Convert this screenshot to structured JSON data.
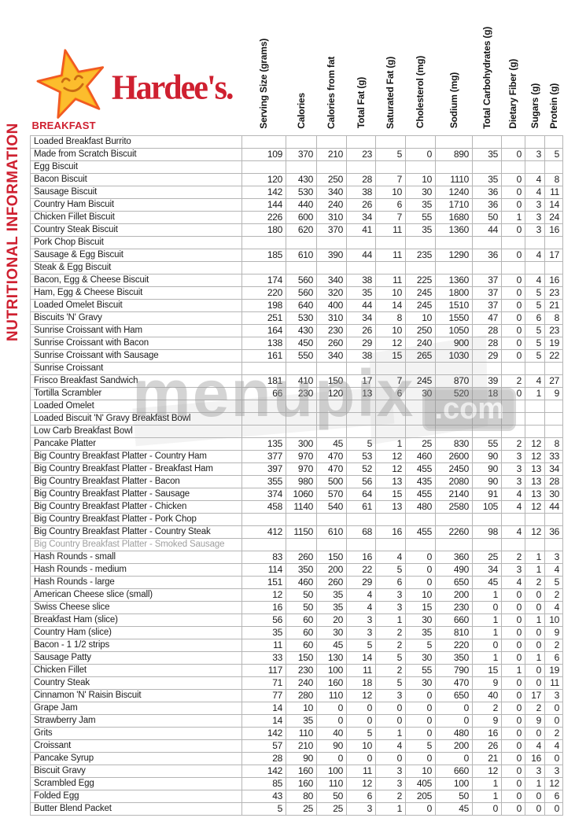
{
  "brand": {
    "name": "Hardee's.",
    "logo_icon": "hardees-smiling-star"
  },
  "sidebar_label": "NUTRITIONAL INFORMATION",
  "section_title": "BREAKFAST",
  "watermark": {
    "text": "menupix",
    "suffix": ".com"
  },
  "colors": {
    "brand_red": "#cf2030",
    "star_gold": "#fbb117",
    "star_outline": "#f15a22",
    "muted_row": "#9f9f9f"
  },
  "table": {
    "columns": [
      "Serving Size (grams)",
      "Calories",
      "Calories from fat",
      "Total Fat (g)",
      "Saturated Fat (g)",
      "Cholesterol (mg)",
      "Sodium (mg)",
      "Total Carbohydrates (g)",
      "Dietary Fiber (g)",
      "Sugars (g)",
      "Protein (g)"
    ],
    "rows": [
      {
        "name": "Loaded Breakfast Burrito",
        "values": [
          "",
          "",
          "",
          "",
          "",
          "",
          "",
          "",
          "",
          "",
          ""
        ]
      },
      {
        "name": "Made from Scratch Biscuit",
        "values": [
          109,
          370,
          210,
          23,
          5,
          0,
          890,
          35,
          0,
          3,
          5
        ]
      },
      {
        "name": "Egg Biscuit",
        "values": [
          "",
          "",
          "",
          "",
          "",
          "",
          "",
          "",
          "",
          "",
          ""
        ]
      },
      {
        "name": "Bacon Biscuit",
        "values": [
          120,
          430,
          250,
          28,
          7,
          10,
          1110,
          35,
          0,
          4,
          8
        ]
      },
      {
        "name": "Sausage Biscuit",
        "values": [
          142,
          530,
          340,
          38,
          10,
          30,
          1240,
          36,
          0,
          4,
          11
        ]
      },
      {
        "name": "Country Ham Biscuit",
        "values": [
          144,
          440,
          240,
          26,
          6,
          35,
          1710,
          36,
          0,
          3,
          14
        ]
      },
      {
        "name": "Chicken Fillet Biscuit",
        "values": [
          226,
          600,
          310,
          34,
          7,
          55,
          1680,
          50,
          1,
          3,
          24
        ]
      },
      {
        "name": "Country Steak Biscuit",
        "values": [
          180,
          620,
          370,
          41,
          11,
          35,
          1360,
          44,
          0,
          3,
          16
        ]
      },
      {
        "name": "Pork Chop Biscuit",
        "values": [
          "",
          "",
          "",
          "",
          "",
          "",
          "",
          "",
          "",
          "",
          ""
        ]
      },
      {
        "name": "Sausage & Egg Biscuit",
        "values": [
          185,
          610,
          390,
          44,
          11,
          235,
          1290,
          36,
          0,
          4,
          17
        ]
      },
      {
        "name": "Steak & Egg Biscuit",
        "values": [
          "",
          "",
          "",
          "",
          "",
          "",
          "",
          "",
          "",
          "",
          ""
        ]
      },
      {
        "name": "Bacon, Egg & Cheese Biscuit",
        "values": [
          174,
          560,
          340,
          38,
          11,
          225,
          1360,
          37,
          0,
          4,
          16
        ]
      },
      {
        "name": "Ham, Egg & Cheese Biscuit",
        "values": [
          220,
          560,
          320,
          35,
          10,
          245,
          1800,
          37,
          0,
          5,
          23
        ]
      },
      {
        "name": "Loaded Omelet Biscuit",
        "values": [
          198,
          640,
          400,
          44,
          14,
          245,
          1510,
          37,
          0,
          5,
          21
        ]
      },
      {
        "name": "Biscuits 'N' Gravy",
        "values": [
          251,
          530,
          310,
          34,
          8,
          10,
          1550,
          47,
          0,
          6,
          8
        ]
      },
      {
        "name": "Sunrise Croissant with Ham",
        "values": [
          164,
          430,
          230,
          26,
          10,
          250,
          1050,
          28,
          0,
          5,
          23
        ]
      },
      {
        "name": "Sunrise Croissant with Bacon",
        "values": [
          138,
          450,
          260,
          29,
          12,
          240,
          900,
          28,
          0,
          5,
          19
        ]
      },
      {
        "name": "Sunrise Croissant with Sausage",
        "values": [
          161,
          550,
          340,
          38,
          15,
          265,
          1030,
          29,
          0,
          5,
          22
        ]
      },
      {
        "name": "Sunrise Croissant",
        "values": [
          "",
          "",
          "",
          "",
          "",
          "",
          "",
          "",
          "",
          "",
          ""
        ]
      },
      {
        "name": "Frisco Breakfast Sandwich",
        "values": [
          181,
          410,
          150,
          17,
          7,
          245,
          870,
          39,
          2,
          4,
          27
        ]
      },
      {
        "name": "Tortilla Scrambler",
        "values": [
          66,
          230,
          120,
          13,
          6,
          30,
          520,
          18,
          0,
          1,
          9
        ]
      },
      {
        "name": "Loaded Omelet",
        "values": [
          "",
          "",
          "",
          "",
          "",
          "",
          "",
          "",
          "",
          "",
          ""
        ]
      },
      {
        "name": "Loaded Biscuit 'N' Gravy Breakfast Bowl",
        "values": [
          "",
          "",
          "",
          "",
          "",
          "",
          "",
          "",
          "",
          "",
          ""
        ]
      },
      {
        "name": "Low Carb Breakfast Bowl",
        "values": [
          "",
          "",
          "",
          "",
          "",
          "",
          "",
          "",
          "",
          "",
          ""
        ]
      },
      {
        "name": "Pancake Platter",
        "values": [
          135,
          300,
          45,
          5,
          1,
          25,
          830,
          55,
          2,
          12,
          8
        ]
      },
      {
        "name": "Big Country Breakfast Platter - Country Ham",
        "values": [
          377,
          970,
          470,
          53,
          12,
          460,
          2600,
          90,
          3,
          12,
          33
        ]
      },
      {
        "name": "Big Country Breakfast Platter - Breakfast Ham",
        "values": [
          397,
          970,
          470,
          52,
          12,
          455,
          2450,
          90,
          3,
          13,
          34
        ]
      },
      {
        "name": "Big Country Breakfast Platter - Bacon",
        "values": [
          355,
          980,
          500,
          56,
          13,
          435,
          2080,
          90,
          3,
          13,
          28
        ]
      },
      {
        "name": "Big Country Breakfast Platter - Sausage",
        "values": [
          374,
          1060,
          570,
          64,
          15,
          455,
          2140,
          91,
          4,
          13,
          30
        ]
      },
      {
        "name": "Big Country Breakfast Platter - Chicken",
        "values": [
          458,
          1140,
          540,
          61,
          13,
          480,
          2580,
          105,
          4,
          12,
          44
        ]
      },
      {
        "name": "Big Country Breakfast Platter - Pork Chop",
        "values": [
          "",
          "",
          "",
          "",
          "",
          "",
          "",
          "",
          "",
          "",
          ""
        ]
      },
      {
        "name": "Big Country Breakfast Platter - Country Steak",
        "values": [
          412,
          1150,
          610,
          68,
          16,
          455,
          2260,
          98,
          4,
          12,
          36
        ]
      },
      {
        "name": "Big Country Breakfast Platter - Smoked Sausage",
        "values": [
          "",
          "",
          "",
          "",
          "",
          "",
          "",
          "",
          "",
          "",
          ""
        ],
        "muted": true
      },
      {
        "name": "Hash Rounds - small",
        "values": [
          83,
          260,
          150,
          16,
          4,
          0,
          360,
          25,
          2,
          1,
          3
        ]
      },
      {
        "name": "Hash Rounds - medium",
        "values": [
          114,
          350,
          200,
          22,
          5,
          0,
          490,
          34,
          3,
          1,
          4
        ]
      },
      {
        "name": "Hash Rounds - large",
        "values": [
          151,
          460,
          260,
          29,
          6,
          0,
          650,
          45,
          4,
          2,
          5
        ]
      },
      {
        "name": "American Cheese slice (small)",
        "values": [
          12,
          50,
          35,
          4,
          3,
          10,
          200,
          1,
          0,
          0,
          2
        ]
      },
      {
        "name": "Swiss Cheese slice",
        "values": [
          16,
          50,
          35,
          4,
          3,
          15,
          230,
          0,
          0,
          0,
          4
        ]
      },
      {
        "name": "Breakfast Ham (slice)",
        "values": [
          56,
          60,
          20,
          3,
          1,
          30,
          660,
          1,
          0,
          1,
          10
        ]
      },
      {
        "name": "Country Ham (slice)",
        "values": [
          35,
          60,
          30,
          3,
          2,
          35,
          810,
          1,
          0,
          0,
          9
        ]
      },
      {
        "name": "Bacon - 1 1/2 strips",
        "values": [
          11,
          60,
          45,
          5,
          2,
          5,
          220,
          0,
          0,
          0,
          2
        ]
      },
      {
        "name": "Sausage Patty",
        "values": [
          33,
          150,
          130,
          14,
          5,
          30,
          350,
          1,
          0,
          1,
          6
        ]
      },
      {
        "name": "Chicken Fillet",
        "values": [
          117,
          230,
          100,
          11,
          2,
          55,
          790,
          15,
          1,
          0,
          19
        ]
      },
      {
        "name": "Country Steak",
        "values": [
          71,
          240,
          160,
          18,
          5,
          30,
          470,
          9,
          0,
          0,
          11
        ]
      },
      {
        "name": "Cinnamon 'N' Raisin Biscuit",
        "values": [
          77,
          280,
          110,
          12,
          3,
          0,
          650,
          40,
          0,
          17,
          3
        ]
      },
      {
        "name": "Grape Jam",
        "values": [
          14,
          10,
          0,
          0,
          0,
          0,
          0,
          2,
          0,
          2,
          0
        ]
      },
      {
        "name": "Strawberry Jam",
        "values": [
          14,
          35,
          0,
          0,
          0,
          0,
          0,
          9,
          0,
          9,
          0
        ]
      },
      {
        "name": "Grits",
        "values": [
          142,
          110,
          40,
          5,
          1,
          0,
          480,
          16,
          0,
          0,
          2
        ]
      },
      {
        "name": "Croissant",
        "values": [
          57,
          210,
          90,
          10,
          4,
          5,
          200,
          26,
          0,
          4,
          4
        ]
      },
      {
        "name": "Pancake Syrup",
        "values": [
          28,
          90,
          0,
          0,
          0,
          0,
          0,
          21,
          0,
          16,
          0
        ]
      },
      {
        "name": "Biscuit Gravy",
        "values": [
          142,
          160,
          100,
          11,
          3,
          10,
          660,
          12,
          0,
          3,
          3
        ]
      },
      {
        "name": "Scrambled Egg",
        "values": [
          85,
          160,
          110,
          12,
          3,
          405,
          100,
          1,
          0,
          1,
          12
        ]
      },
      {
        "name": "Folded Egg",
        "values": [
          43,
          80,
          50,
          6,
          2,
          205,
          50,
          1,
          0,
          0,
          6
        ]
      },
      {
        "name": "Butter Blend Packet",
        "values": [
          5,
          25,
          25,
          3,
          1,
          0,
          45,
          0,
          0,
          0,
          0
        ]
      }
    ]
  }
}
